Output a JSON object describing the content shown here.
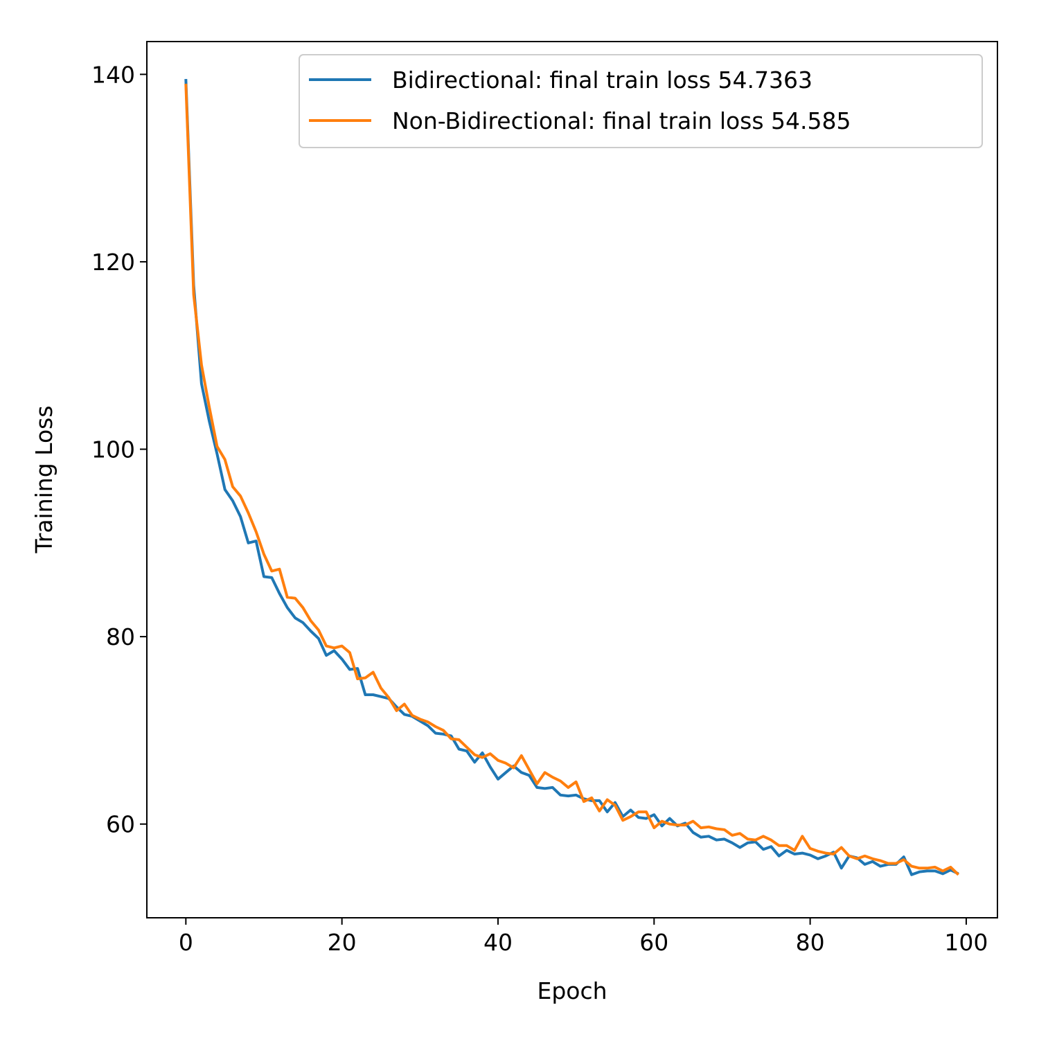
{
  "chart_data": {
    "type": "line",
    "xlabel": "Epoch",
    "ylabel": "Training Loss",
    "xlim": [
      -5,
      104
    ],
    "ylim": [
      50,
      143.5
    ],
    "xticks": [
      0,
      20,
      40,
      60,
      80,
      100
    ],
    "yticks": [
      60,
      80,
      100,
      120,
      140
    ],
    "legend_position": "top-right",
    "grid": false,
    "series": [
      {
        "name": "Bidirectional: final train loss 54.7363",
        "color": "#1f77b4",
        "x": [
          0,
          1,
          2,
          3,
          4,
          5,
          6,
          7,
          8,
          9,
          10,
          11,
          12,
          13,
          14,
          15,
          16,
          17,
          18,
          19,
          20,
          21,
          22,
          23,
          24,
          25,
          26,
          27,
          28,
          29,
          30,
          31,
          32,
          33,
          34,
          35,
          36,
          37,
          38,
          39,
          40,
          41,
          42,
          43,
          44,
          45,
          46,
          47,
          48,
          49,
          50,
          51,
          52,
          53,
          54,
          55,
          56,
          57,
          58,
          59,
          60,
          61,
          62,
          63,
          64,
          65,
          66,
          67,
          68,
          69,
          70,
          71,
          72,
          73,
          74,
          75,
          76,
          77,
          78,
          79,
          80,
          81,
          82,
          83,
          84,
          85,
          86,
          87,
          88,
          89,
          90,
          91,
          92,
          93,
          94,
          95,
          96,
          97,
          98,
          99
        ],
        "y": [
          139.5,
          117.5,
          107.0,
          103.0,
          99.5,
          95.7,
          94.5,
          92.8,
          90.0,
          90.2,
          86.4,
          86.3,
          84.6,
          83.1,
          82.0,
          81.5,
          80.6,
          79.8,
          78.0,
          78.5,
          77.6,
          76.5,
          76.6,
          73.8,
          73.8,
          73.6,
          73.4,
          72.5,
          71.7,
          71.5,
          71.0,
          70.5,
          69.7,
          69.6,
          69.4,
          68.0,
          67.8,
          66.6,
          67.6,
          66.1,
          64.8,
          65.5,
          66.2,
          65.5,
          65.2,
          63.9,
          63.8,
          63.9,
          63.1,
          63.0,
          63.1,
          62.7,
          62.5,
          62.5,
          61.3,
          62.3,
          60.8,
          61.5,
          60.7,
          60.6,
          61.0,
          59.8,
          60.6,
          59.8,
          60.1,
          59.1,
          58.6,
          58.7,
          58.3,
          58.4,
          58.0,
          57.5,
          58.0,
          58.1,
          57.3,
          57.6,
          56.6,
          57.2,
          56.8,
          56.9,
          56.7,
          56.3,
          56.6,
          57.0,
          55.3,
          56.6,
          56.4,
          55.7,
          56.0,
          55.5,
          55.7,
          55.7,
          56.5,
          54.6,
          54.9,
          55.0,
          55.0,
          54.7,
          55.1,
          54.7
        ]
      },
      {
        "name": "Non-Bidirectional: final train loss 54.585",
        "color": "#ff7f0e",
        "x": [
          0,
          1,
          2,
          3,
          4,
          5,
          6,
          7,
          8,
          9,
          10,
          11,
          12,
          13,
          14,
          15,
          16,
          17,
          18,
          19,
          20,
          21,
          22,
          23,
          24,
          25,
          26,
          27,
          28,
          29,
          30,
          31,
          32,
          33,
          34,
          35,
          36,
          37,
          38,
          39,
          40,
          41,
          42,
          43,
          44,
          45,
          46,
          47,
          48,
          49,
          50,
          51,
          52,
          53,
          54,
          55,
          56,
          57,
          58,
          59,
          60,
          61,
          62,
          63,
          64,
          65,
          66,
          67,
          68,
          69,
          70,
          71,
          72,
          73,
          74,
          75,
          76,
          77,
          78,
          79,
          80,
          81,
          82,
          83,
          84,
          85,
          86,
          87,
          88,
          89,
          90,
          91,
          92,
          93,
          94,
          95,
          96,
          97,
          98,
          99
        ],
        "y": [
          139.0,
          116.5,
          109.0,
          104.5,
          100.3,
          98.9,
          96.0,
          95.0,
          93.2,
          91.2,
          88.8,
          87.0,
          87.2,
          84.2,
          84.1,
          83.1,
          81.7,
          80.7,
          79.0,
          78.8,
          79.0,
          78.3,
          75.5,
          75.6,
          76.2,
          74.5,
          73.5,
          72.1,
          72.8,
          71.6,
          71.2,
          70.9,
          70.4,
          70.0,
          69.1,
          69.0,
          68.2,
          67.4,
          67.1,
          67.5,
          66.8,
          66.5,
          66.0,
          67.3,
          65.8,
          64.3,
          65.5,
          65.0,
          64.6,
          63.9,
          64.5,
          62.4,
          62.8,
          61.4,
          62.6,
          62.0,
          60.4,
          60.8,
          61.3,
          61.3,
          59.6,
          60.3,
          60.0,
          59.9,
          59.9,
          60.3,
          59.6,
          59.7,
          59.5,
          59.4,
          58.8,
          59.0,
          58.4,
          58.3,
          58.7,
          58.3,
          57.7,
          57.7,
          57.2,
          58.7,
          57.4,
          57.1,
          56.9,
          56.8,
          57.5,
          56.6,
          56.3,
          56.6,
          56.3,
          56.1,
          55.8,
          55.8,
          56.2,
          55.5,
          55.3,
          55.3,
          55.4,
          55.0,
          55.4,
          54.6
        ]
      }
    ]
  }
}
